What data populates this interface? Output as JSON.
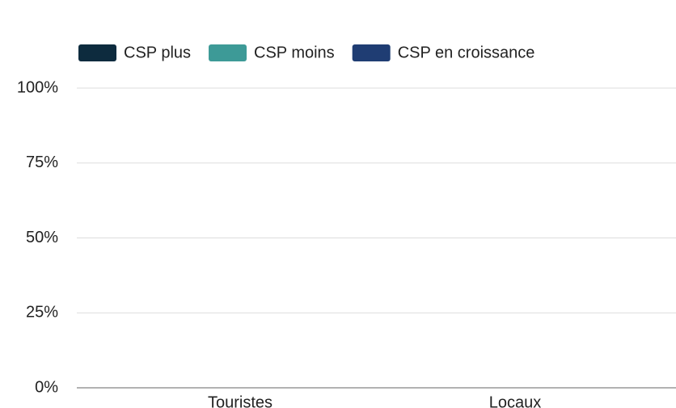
{
  "chart_data": {
    "type": "bar",
    "stacked": true,
    "categories": [
      "Touristes",
      "Locaux"
    ],
    "series": [
      {
        "name": "CSP plus",
        "color": "#0d2b3e",
        "values": [
          null,
          null
        ]
      },
      {
        "name": "CSP moins",
        "color": "#3d9a97",
        "values": [
          null,
          null
        ]
      },
      {
        "name": "CSP en croissance",
        "color": "#1f3d73",
        "values": [
          null,
          null
        ]
      }
    ],
    "ylim": [
      0,
      100
    ],
    "yticks": [
      {
        "value": 0,
        "label": "0%"
      },
      {
        "value": 25,
        "label": "25%"
      },
      {
        "value": 50,
        "label": "50%"
      },
      {
        "value": 75,
        "label": "75%"
      },
      {
        "value": 100,
        "label": "100%"
      }
    ],
    "grid": true,
    "legend": "top"
  }
}
